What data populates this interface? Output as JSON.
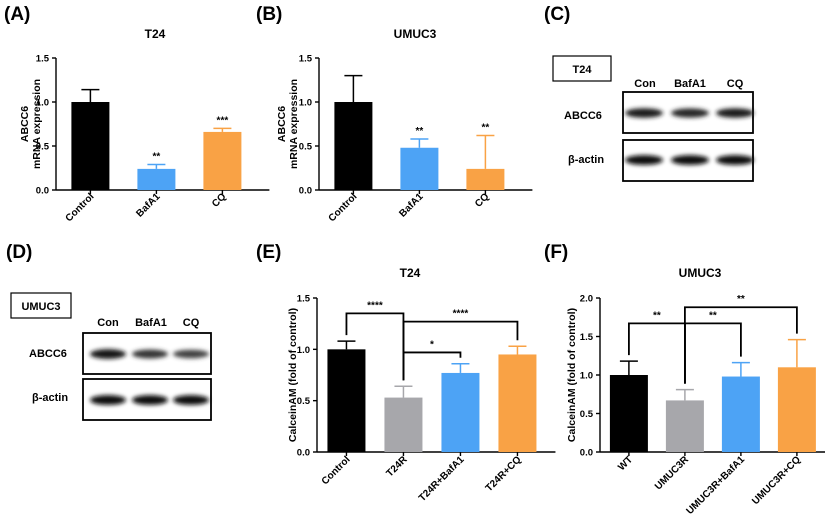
{
  "colors": {
    "black": "#000000",
    "blue": "#4da3f5",
    "orange": "#f9a245",
    "gray": "#a7a7ab"
  },
  "chart_data": [
    {
      "panel": "(A)",
      "type": "bar",
      "title": "T24",
      "ylabel_lines": [
        "ABCC6",
        "mRNA expression"
      ],
      "ylim": [
        0,
        1.5
      ],
      "yticks": [
        0.0,
        0.5,
        1.0,
        1.5
      ],
      "tick_labels": [
        "0.0",
        "0.5",
        "1.0",
        "1.5"
      ],
      "categories": [
        "Control",
        "BafA1",
        "CQ"
      ],
      "values": [
        1.0,
        0.24,
        0.66
      ],
      "errors": [
        0.14,
        0.05,
        0.04
      ],
      "bar_colors": [
        "#000000",
        "#4da3f5",
        "#f9a245"
      ],
      "sig_labels": [
        "",
        "**",
        "***"
      ],
      "brackets": []
    },
    {
      "panel": "(B)",
      "type": "bar",
      "title": "UMUC3",
      "ylabel_lines": [
        "ABCC6",
        "mRNA expression"
      ],
      "ylim": [
        0,
        1.5
      ],
      "yticks": [
        0.0,
        0.5,
        1.0,
        1.5
      ],
      "tick_labels": [
        "0.0",
        "0.5",
        "1.0",
        "1.5"
      ],
      "categories": [
        "Control",
        "BafA1",
        "CQ"
      ],
      "values": [
        1.0,
        0.48,
        0.24
      ],
      "errors": [
        0.3,
        0.1,
        0.38
      ],
      "bar_colors": [
        "#000000",
        "#4da3f5",
        "#f9a245"
      ],
      "sig_labels": [
        "",
        "**",
        "**"
      ],
      "brackets": []
    },
    {
      "panel": "(E)",
      "type": "bar",
      "title": "T24",
      "ylabel_lines": [
        "CalceinAM (fold of control)"
      ],
      "ylim": [
        0,
        1.5
      ],
      "yticks": [
        0.0,
        0.5,
        1.0,
        1.5
      ],
      "tick_labels": [
        "0.0",
        "0.5",
        "1.0",
        "1.5"
      ],
      "categories": [
        "Control",
        "T24R",
        "T24R+BafA1",
        "T24R+CQ"
      ],
      "values": [
        1.0,
        0.53,
        0.77,
        0.95
      ],
      "errors": [
        0.08,
        0.11,
        0.09,
        0.08
      ],
      "bar_colors": [
        "#000000",
        "#a7a7ab",
        "#4da3f5",
        "#f9a245"
      ],
      "sig_labels": [
        "",
        "",
        "",
        ""
      ],
      "brackets": [
        {
          "from": 0,
          "to": 1,
          "level": 1.35,
          "label": "****"
        },
        {
          "from": 1,
          "to": 2,
          "level": 0.97,
          "label": "*"
        },
        {
          "from": 1,
          "to": 3,
          "level": 1.27,
          "label": "****"
        }
      ]
    },
    {
      "panel": "(F)",
      "type": "bar",
      "title": "UMUC3",
      "ylabel_lines": [
        "CalceinAM (fold of control)"
      ],
      "ylim": [
        0,
        2.0
      ],
      "yticks": [
        0.0,
        0.5,
        1.0,
        1.5,
        2.0
      ],
      "tick_labels": [
        "0.0",
        "0.5",
        "1.0",
        "1.5",
        "2.0"
      ],
      "categories": [
        "WT",
        "UMUC3R",
        "UMUC3R+BafA1",
        "UMUC3R+CQ"
      ],
      "values": [
        1.0,
        0.67,
        0.98,
        1.1
      ],
      "errors": [
        0.18,
        0.14,
        0.18,
        0.36
      ],
      "bar_colors": [
        "#000000",
        "#a7a7ab",
        "#4da3f5",
        "#f9a245"
      ],
      "sig_labels": [
        "",
        "",
        "",
        ""
      ],
      "brackets": [
        {
          "from": 0,
          "to": 1,
          "level": 1.67,
          "label": "**"
        },
        {
          "from": 1,
          "to": 2,
          "level": 1.67,
          "label": "**"
        },
        {
          "from": 1,
          "to": 3,
          "level": 1.88,
          "label": "**"
        }
      ]
    }
  ],
  "blots": [
    {
      "panel": "(C)",
      "cell_line": "T24",
      "lanes": [
        "Con",
        "BafA1",
        "CQ"
      ],
      "rows": [
        {
          "label": "ABCC6",
          "intensity": [
            0.85,
            0.8,
            0.85
          ]
        },
        {
          "label": "β-actin",
          "intensity": [
            0.95,
            0.95,
            0.95
          ]
        }
      ]
    },
    {
      "panel": "(D)",
      "cell_line": "UMUC3",
      "lanes": [
        "Con",
        "BafA1",
        "CQ"
      ],
      "rows": [
        {
          "label": "ABCC6",
          "intensity": [
            0.9,
            0.7,
            0.6
          ]
        },
        {
          "label": "β-actin",
          "intensity": [
            0.95,
            0.95,
            0.95
          ]
        }
      ]
    }
  ]
}
